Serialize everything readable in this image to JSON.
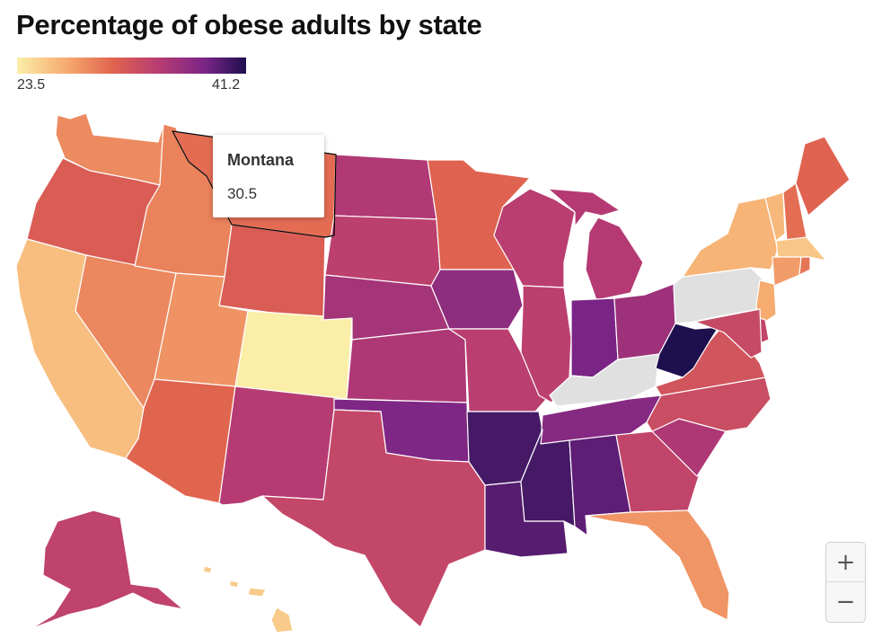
{
  "title": "Percentage of obese adults by state",
  "legend": {
    "min": "23.5",
    "max": "41.2"
  },
  "tooltip": {
    "state": "Montana",
    "value": "30.5"
  },
  "controls": {
    "zoom_in": "+",
    "zoom_out": "−"
  },
  "colors": {
    "scale_low": "#fbeea8",
    "scale_high": "#1e0f4e",
    "no_data": "#e0e0e0",
    "highlight_outline": "#000000"
  },
  "states": [
    {
      "code": "WA",
      "name": "Washington",
      "value": 29.0
    },
    {
      "code": "OR",
      "name": "Oregon",
      "value": 31.5
    },
    {
      "code": "CA",
      "name": "California",
      "value": 26.2
    },
    {
      "code": "NV",
      "name": "Nevada",
      "value": 29.1
    },
    {
      "code": "ID",
      "name": "Idaho",
      "value": 29.4
    },
    {
      "code": "MT",
      "name": "Montana",
      "value": 30.5
    },
    {
      "code": "WY",
      "name": "Wyoming",
      "value": 31.5
    },
    {
      "code": "UT",
      "name": "Utah",
      "value": 28.5
    },
    {
      "code": "AZ",
      "name": "Arizona",
      "value": 30.9
    },
    {
      "code": "CO",
      "name": "Colorado",
      "value": 23.5
    },
    {
      "code": "NM",
      "name": "New Mexico",
      "value": 34.5
    },
    {
      "code": "ND",
      "name": "North Dakota",
      "value": 34.8
    },
    {
      "code": "SD",
      "name": "South Dakota",
      "value": 34.0
    },
    {
      "code": "NE",
      "name": "Nebraska",
      "value": 35.5
    },
    {
      "code": "KS",
      "name": "Kansas",
      "value": 35.0
    },
    {
      "code": "OK",
      "name": "Oklahoma",
      "value": 37.7
    },
    {
      "code": "TX",
      "name": "Texas",
      "value": 33.4
    },
    {
      "code": "MN",
      "name": "Minnesota",
      "value": 31.0
    },
    {
      "code": "IA",
      "name": "Iowa",
      "value": 36.8
    },
    {
      "code": "MO",
      "name": "Missouri",
      "value": 34.2
    },
    {
      "code": "AR",
      "name": "Arkansas",
      "value": 39.8
    },
    {
      "code": "LA",
      "name": "Louisiana",
      "value": 39.3
    },
    {
      "code": "WI",
      "name": "Wisconsin",
      "value": 34.2
    },
    {
      "code": "IL",
      "name": "Illinois",
      "value": 34.0
    },
    {
      "code": "MI",
      "name": "Michigan",
      "value": 34.6
    },
    {
      "code": "IN",
      "name": "Indiana",
      "value": 38.0
    },
    {
      "code": "OH",
      "name": "Ohio",
      "value": 36.0
    },
    {
      "code": "KY",
      "name": "Kentucky",
      "value": null
    },
    {
      "code": "TN",
      "name": "Tennessee",
      "value": 37.3
    },
    {
      "code": "MS",
      "name": "Mississippi",
      "value": 39.8
    },
    {
      "code": "AL",
      "name": "Alabama",
      "value": 39.0
    },
    {
      "code": "GA",
      "name": "Georgia",
      "value": 33.6
    },
    {
      "code": "FL",
      "name": "Florida",
      "value": 28.4
    },
    {
      "code": "SC",
      "name": "South Carolina",
      "value": 35.0
    },
    {
      "code": "NC",
      "name": "North Carolina",
      "value": 32.9
    },
    {
      "code": "VA",
      "name": "Virginia",
      "value": 32.2
    },
    {
      "code": "WV",
      "name": "West Virginia",
      "value": 41.2
    },
    {
      "code": "PA",
      "name": "Pennsylvania",
      "value": null
    },
    {
      "code": "NY",
      "name": "New York",
      "value": 26.8
    },
    {
      "code": "VT",
      "name": "Vermont",
      "value": 26.5
    },
    {
      "code": "NH",
      "name": "New Hampshire",
      "value": 30.4
    },
    {
      "code": "ME",
      "name": "Maine",
      "value": 31.0
    },
    {
      "code": "MA",
      "name": "Massachusetts",
      "value": 25.7
    },
    {
      "code": "CT",
      "name": "Connecticut",
      "value": 28.0
    },
    {
      "code": "RI",
      "name": "Rhode Island",
      "value": 30.0
    },
    {
      "code": "NJ",
      "name": "New Jersey",
      "value": 27.3
    },
    {
      "code": "DE",
      "name": "Delaware",
      "value": 33.5
    },
    {
      "code": "MD",
      "name": "Maryland",
      "value": 33.2
    },
    {
      "code": "AK",
      "name": "Alaska",
      "value": 33.8
    },
    {
      "code": "HI",
      "name": "Hawaii",
      "value": 25.5
    }
  ]
}
